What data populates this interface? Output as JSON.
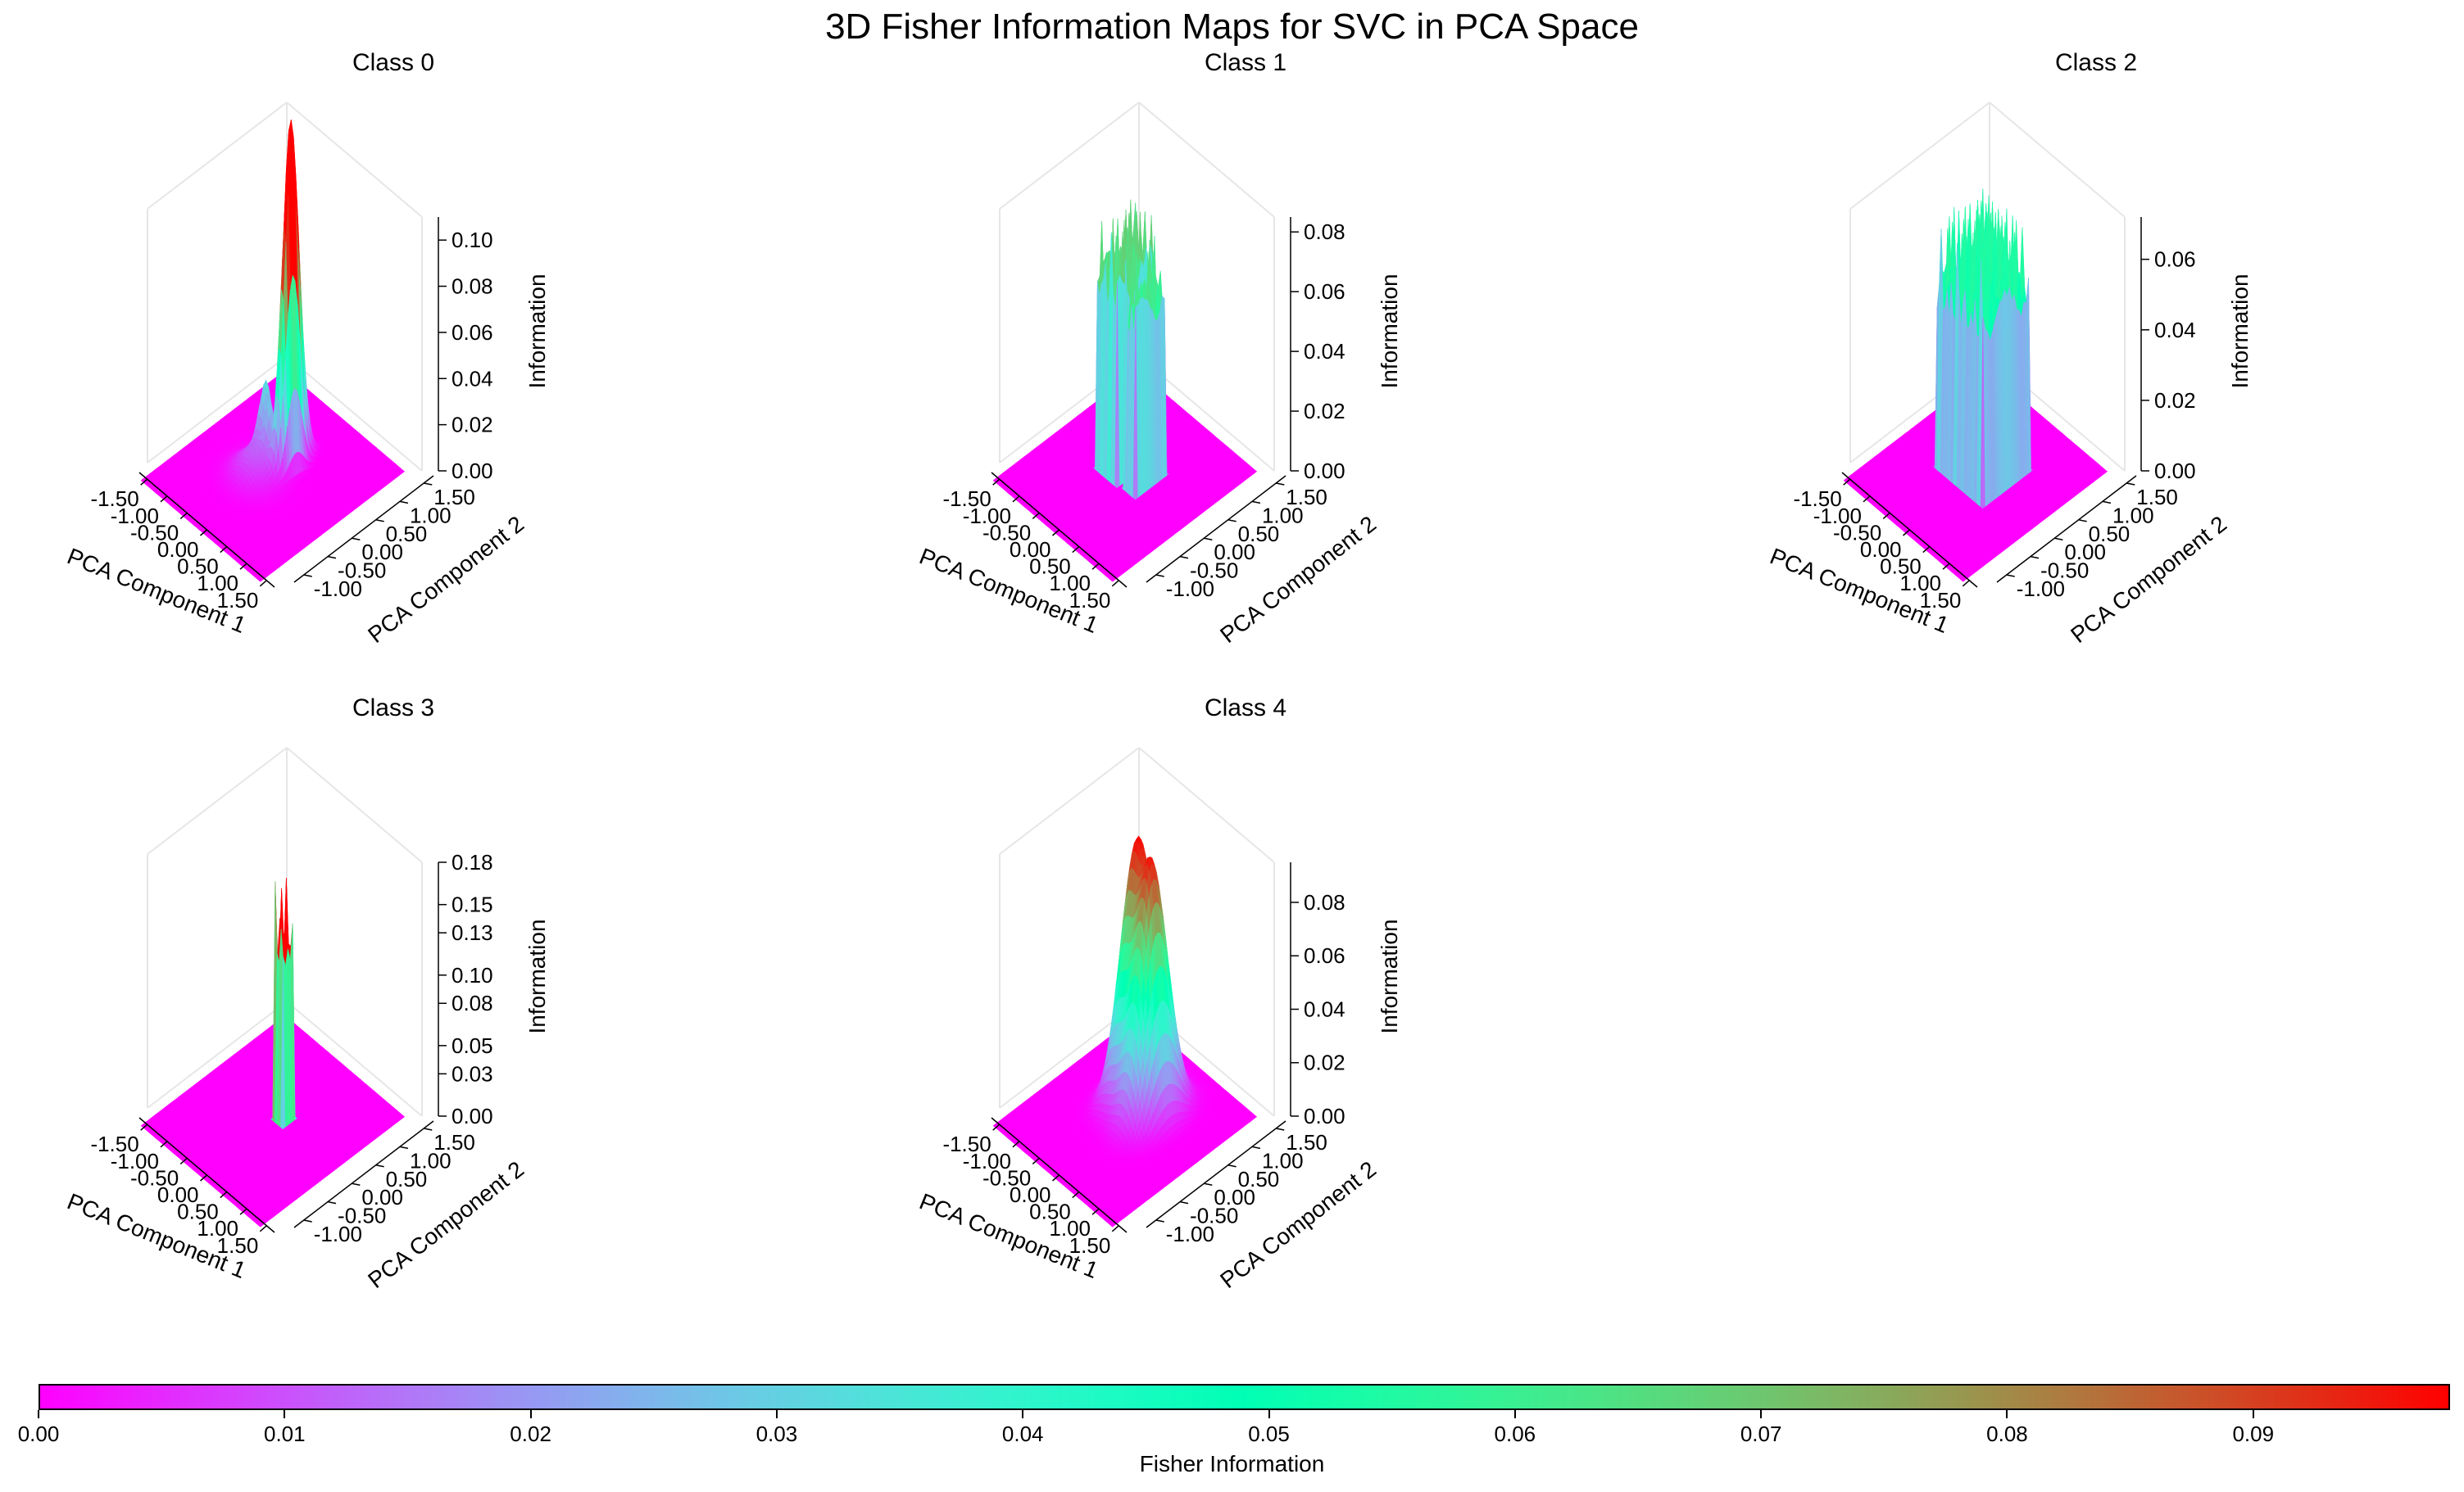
{
  "figure": {
    "title": "3D Fisher Information Maps for SVC in PCA Space"
  },
  "chart_data": [
    {
      "type": "surface",
      "title": "Class 0",
      "xlabel": "PCA Component 1",
      "ylabel": "PCA Component 2",
      "zlabel": "Information",
      "x_ticks": [
        "-1.50",
        "-1.00",
        "-0.50",
        "0.00",
        "0.50",
        "1.00",
        "1.50"
      ],
      "y_ticks": [
        "-1.00",
        "-0.50",
        "0.00",
        "0.50",
        "1.00",
        "1.50"
      ],
      "z_ticks": [
        "0.00",
        "0.02",
        "0.04",
        "0.06",
        "0.08",
        "0.10"
      ],
      "xlim": [
        -1.7,
        1.7
      ],
      "ylim": [
        -1.2,
        1.7
      ],
      "zlim": [
        0,
        0.11
      ],
      "peaks": [
        {
          "x": 0.05,
          "y": 0.35,
          "height": 0.105,
          "sx": 0.07,
          "sy": 0.18
        },
        {
          "x": 0.15,
          "y": 0.25,
          "height": 0.098,
          "sx": 0.07,
          "sy": 0.15
        },
        {
          "x": -0.35,
          "y": 0.15,
          "height": 0.03,
          "sx": 0.08,
          "sy": 0.12
        },
        {
          "x": -0.15,
          "y": 0.05,
          "height": 0.022,
          "sx": 0.06,
          "sy": 0.08
        },
        {
          "x": -0.2,
          "y": -0.2,
          "height": 0.012,
          "sx": 0.3,
          "sy": 0.25
        }
      ]
    },
    {
      "type": "surface",
      "title": "Class 1",
      "xlabel": "PCA Component 1",
      "ylabel": "PCA Component 2",
      "zlabel": "Information",
      "x_ticks": [
        "-1.50",
        "-1.00",
        "-0.50",
        "0.00",
        "0.50",
        "1.00",
        "1.50"
      ],
      "y_ticks": [
        "-1.00",
        "-0.50",
        "0.00",
        "0.50",
        "1.00",
        "1.50"
      ],
      "z_ticks": [
        "0.00",
        "0.02",
        "0.04",
        "0.06",
        "0.08"
      ],
      "xlim": [
        -1.7,
        1.7
      ],
      "ylim": [
        -1.2,
        1.7
      ],
      "zlim": [
        0,
        0.085
      ],
      "walls": [
        {
          "x0": -0.45,
          "x1": 0.1,
          "y0": -0.2,
          "y1": 0.55,
          "height": 0.075,
          "top": 0.083
        },
        {
          "x0": 0.15,
          "x1": 0.45,
          "y0": -0.15,
          "y1": 0.45,
          "height": 0.07,
          "top": 0.078
        }
      ]
    },
    {
      "type": "surface",
      "title": "Class 2",
      "xlabel": "PCA Component 1",
      "ylabel": "PCA Component 2",
      "zlabel": "Information",
      "x_ticks": [
        "-1.50",
        "-1.00",
        "-0.50",
        "0.00",
        "0.50",
        "1.00",
        "1.50"
      ],
      "y_ticks": [
        "-1.00",
        "-0.50",
        "0.00",
        "0.50",
        "1.00",
        "1.50"
      ],
      "z_ticks": [
        "0.00",
        "0.02",
        "0.04",
        "0.06"
      ],
      "xlim": [
        -1.7,
        1.7
      ],
      "ylim": [
        -1.2,
        1.7
      ],
      "zlim": [
        0,
        0.072
      ],
      "walls": [
        {
          "x0": -0.6,
          "x1": 0.55,
          "y0": -0.35,
          "y1": 0.7,
          "height": 0.06,
          "top": 0.07
        }
      ]
    },
    {
      "type": "surface",
      "title": "Class 3",
      "xlabel": "PCA Component 1",
      "ylabel": "PCA Component 2",
      "zlabel": "Information",
      "x_ticks": [
        "-1.50",
        "-1.00",
        "-0.50",
        "0.00",
        "0.50",
        "1.00",
        "1.50"
      ],
      "y_ticks": [
        "-1.00",
        "-0.50",
        "0.00",
        "0.50",
        "1.00",
        "1.50"
      ],
      "z_ticks": [
        "0.00",
        "0.03",
        "0.05",
        "0.08",
        "0.10",
        "0.13",
        "0.15",
        "0.18"
      ],
      "xlim": [
        -1.7,
        1.7
      ],
      "ylim": [
        -1.2,
        1.7
      ],
      "zlim": [
        0,
        0.18
      ],
      "walls": [
        {
          "x0": 0.0,
          "x1": 0.2,
          "y0": 0.05,
          "y1": 0.3,
          "height": 0.15,
          "top": 0.17
        }
      ]
    },
    {
      "type": "surface",
      "title": "Class 4",
      "xlabel": "PCA Component 1",
      "ylabel": "PCA Component 2",
      "zlabel": "Information",
      "x_ticks": [
        "-1.50",
        "-1.00",
        "-0.50",
        "0.00",
        "0.50",
        "1.00",
        "1.50"
      ],
      "y_ticks": [
        "-1.00",
        "-0.50",
        "0.00",
        "0.50",
        "1.00",
        "1.50"
      ],
      "z_ticks": [
        "0.00",
        "0.02",
        "0.04",
        "0.06",
        "0.08"
      ],
      "xlim": [
        -1.7,
        1.7
      ],
      "ylim": [
        -1.2,
        1.7
      ],
      "zlim": [
        0,
        0.095
      ],
      "peaks": [
        {
          "x": -0.25,
          "y": 0.45,
          "height": 0.09,
          "sx": 0.22,
          "sy": 0.3
        },
        {
          "x": 0.25,
          "y": 0.35,
          "height": 0.088,
          "sx": 0.22,
          "sy": 0.3
        }
      ]
    }
  ],
  "colorbar": {
    "label": "Fisher Information",
    "colormap": "rainbow",
    "min": 0.0,
    "max": 0.098,
    "ticks": [
      "0.00",
      "0.01",
      "0.02",
      "0.03",
      "0.04",
      "0.05",
      "0.06",
      "0.07",
      "0.08",
      "0.09"
    ]
  },
  "colors": {
    "floor": "#8000ff",
    "pane_edge": "#e6e6e6",
    "axis": "#000000"
  }
}
